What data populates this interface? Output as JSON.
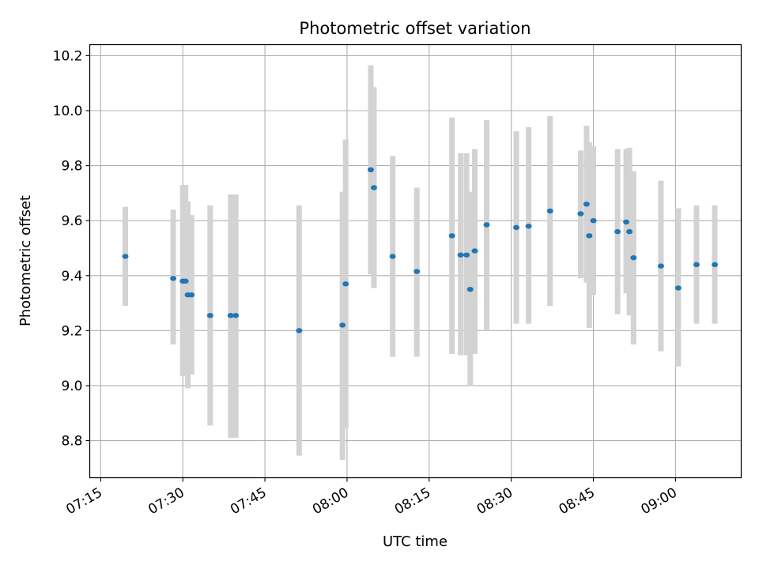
{
  "chart_data": {
    "type": "scatter",
    "title": "Photometric offset variation",
    "xlabel": "UTC time",
    "ylabel": "Photometric offset",
    "xlim_minutes": [
      433,
      552
    ],
    "ylim": [
      8.665,
      10.24
    ],
    "grid": true,
    "x_tick_labels": [
      "07:15",
      "07:30",
      "07:45",
      "08:00",
      "08:15",
      "08:30",
      "08:45",
      "09:00"
    ],
    "x_tick_minutes": [
      435,
      450,
      465,
      480,
      495,
      510,
      525,
      540
    ],
    "y_tick_labels": [
      "8.8",
      "9.0",
      "9.2",
      "9.4",
      "9.6",
      "9.8",
      "10.0",
      "10.2"
    ],
    "y_ticks": [
      8.8,
      9.0,
      9.2,
      9.4,
      9.6,
      9.8,
      10.0,
      10.2
    ],
    "colors": {
      "point": "#1f77b4",
      "errorbar": "#d3d3d3",
      "grid": "#b0b0b0"
    },
    "points": [
      {
        "t": "07:19:30",
        "y": 9.47,
        "lo": 9.29,
        "hi": 9.65
      },
      {
        "t": "07:28:15",
        "y": 9.39,
        "lo": 9.15,
        "hi": 9.64
      },
      {
        "t": "07:30:00",
        "y": 9.38,
        "lo": 9.035,
        "hi": 9.73
      },
      {
        "t": "07:30:30",
        "y": 9.38,
        "lo": 9.035,
        "hi": 9.73
      },
      {
        "t": "07:30:55",
        "y": 9.33,
        "lo": 8.99,
        "hi": 9.67
      },
      {
        "t": "07:31:35",
        "y": 9.33,
        "lo": 9.04,
        "hi": 9.62
      },
      {
        "t": "07:35:00",
        "y": 9.255,
        "lo": 8.855,
        "hi": 9.655
      },
      {
        "t": "07:38:45",
        "y": 9.255,
        "lo": 8.81,
        "hi": 9.695
      },
      {
        "t": "07:39:40",
        "y": 9.255,
        "lo": 8.81,
        "hi": 9.695
      },
      {
        "t": "07:51:15",
        "y": 9.2,
        "lo": 8.745,
        "hi": 9.655
      },
      {
        "t": "07:59:10",
        "y": 9.22,
        "lo": 8.73,
        "hi": 9.705
      },
      {
        "t": "07:59:45",
        "y": 9.37,
        "lo": 8.845,
        "hi": 9.895
      },
      {
        "t": "08:04:20",
        "y": 9.785,
        "lo": 9.405,
        "hi": 10.165
      },
      {
        "t": "08:04:55",
        "y": 9.72,
        "lo": 9.355,
        "hi": 10.085
      },
      {
        "t": "08:08:20",
        "y": 9.47,
        "lo": 9.105,
        "hi": 9.835
      },
      {
        "t": "08:12:45",
        "y": 9.415,
        "lo": 9.105,
        "hi": 9.72
      },
      {
        "t": "08:19:10",
        "y": 9.545,
        "lo": 9.115,
        "hi": 9.975
      },
      {
        "t": "08:20:45",
        "y": 9.475,
        "lo": 9.11,
        "hi": 9.845
      },
      {
        "t": "08:21:50",
        "y": 9.475,
        "lo": 9.11,
        "hi": 9.845
      },
      {
        "t": "08:22:30",
        "y": 9.35,
        "lo": 9.0,
        "hi": 9.705
      },
      {
        "t": "08:23:20",
        "y": 9.49,
        "lo": 9.115,
        "hi": 9.86
      },
      {
        "t": "08:25:30",
        "y": 9.585,
        "lo": 9.2,
        "hi": 9.965
      },
      {
        "t": "08:30:55",
        "y": 9.575,
        "lo": 9.225,
        "hi": 9.925
      },
      {
        "t": "08:33:10",
        "y": 9.58,
        "lo": 9.225,
        "hi": 9.94
      },
      {
        "t": "08:37:05",
        "y": 9.635,
        "lo": 9.29,
        "hi": 9.98
      },
      {
        "t": "08:42:40",
        "y": 9.625,
        "lo": 9.39,
        "hi": 9.855
      },
      {
        "t": "08:43:45",
        "y": 9.66,
        "lo": 9.375,
        "hi": 9.945
      },
      {
        "t": "08:44:15",
        "y": 9.545,
        "lo": 9.21,
        "hi": 9.885
      },
      {
        "t": "08:45:00",
        "y": 9.6,
        "lo": 9.33,
        "hi": 9.87
      },
      {
        "t": "08:49:25",
        "y": 9.56,
        "lo": 9.26,
        "hi": 9.86
      },
      {
        "t": "08:51:00",
        "y": 9.595,
        "lo": 9.335,
        "hi": 9.86
      },
      {
        "t": "08:51:35",
        "y": 9.56,
        "lo": 9.255,
        "hi": 9.865
      },
      {
        "t": "08:52:20",
        "y": 9.465,
        "lo": 9.15,
        "hi": 9.78
      },
      {
        "t": "08:57:20",
        "y": 9.435,
        "lo": 9.125,
        "hi": 9.745
      },
      {
        "t": "09:00:30",
        "y": 9.355,
        "lo": 9.07,
        "hi": 9.645
      },
      {
        "t": "09:03:50",
        "y": 9.44,
        "lo": 9.225,
        "hi": 9.655
      },
      {
        "t": "09:07:10",
        "y": 9.44,
        "lo": 9.225,
        "hi": 9.655
      }
    ]
  }
}
